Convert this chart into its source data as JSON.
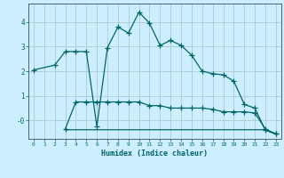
{
  "xlabel": "Humidex (Indice chaleur)",
  "bg_color": "#cceeff",
  "grid_color": "#aacccc",
  "line_color": "#006666",
  "spine_color": "#446666",
  "xlim": [
    -0.5,
    23.5
  ],
  "ylim": [
    -0.75,
    4.75
  ],
  "xticks": [
    0,
    1,
    2,
    3,
    4,
    5,
    6,
    7,
    8,
    9,
    10,
    11,
    12,
    13,
    14,
    15,
    16,
    17,
    18,
    19,
    20,
    21,
    22,
    23
  ],
  "yticks": [
    0,
    1,
    2,
    3,
    4
  ],
  "ytick_labels": [
    "-0",
    "1",
    "2",
    "3",
    "4"
  ],
  "line1_x": [
    0,
    2,
    3,
    4,
    5,
    6,
    7,
    8,
    9,
    10,
    11,
    12,
    13,
    14,
    15,
    16,
    17,
    18,
    19,
    20,
    21,
    22,
    23
  ],
  "line1_y": [
    2.05,
    2.25,
    2.8,
    2.8,
    2.8,
    -0.25,
    2.95,
    3.8,
    3.55,
    4.4,
    3.95,
    3.05,
    3.25,
    3.05,
    2.65,
    2.0,
    1.9,
    1.85,
    1.6,
    0.65,
    0.5,
    -0.4,
    -0.55
  ],
  "line2_x": [
    3,
    4,
    5,
    6,
    7,
    8,
    9,
    10,
    11,
    12,
    13,
    14,
    15,
    16,
    17,
    18,
    19,
    20,
    21,
    22,
    23
  ],
  "line2_y": [
    -0.35,
    0.75,
    0.75,
    0.75,
    0.75,
    0.75,
    0.75,
    0.75,
    0.6,
    0.6,
    0.5,
    0.5,
    0.5,
    0.5,
    0.45,
    0.35,
    0.35,
    0.35,
    0.3,
    -0.35,
    -0.55
  ],
  "line3_x": [
    3,
    4,
    5,
    6,
    7,
    8,
    9,
    10,
    11,
    12,
    13,
    14,
    15,
    16,
    17,
    18,
    19,
    20,
    21,
    22,
    23
  ],
  "line3_y": [
    -0.38,
    -0.38,
    -0.38,
    -0.38,
    -0.38,
    -0.38,
    -0.38,
    -0.38,
    -0.38,
    -0.38,
    -0.38,
    -0.38,
    -0.38,
    -0.38,
    -0.38,
    -0.38,
    -0.38,
    -0.38,
    -0.38,
    -0.38,
    -0.55
  ]
}
